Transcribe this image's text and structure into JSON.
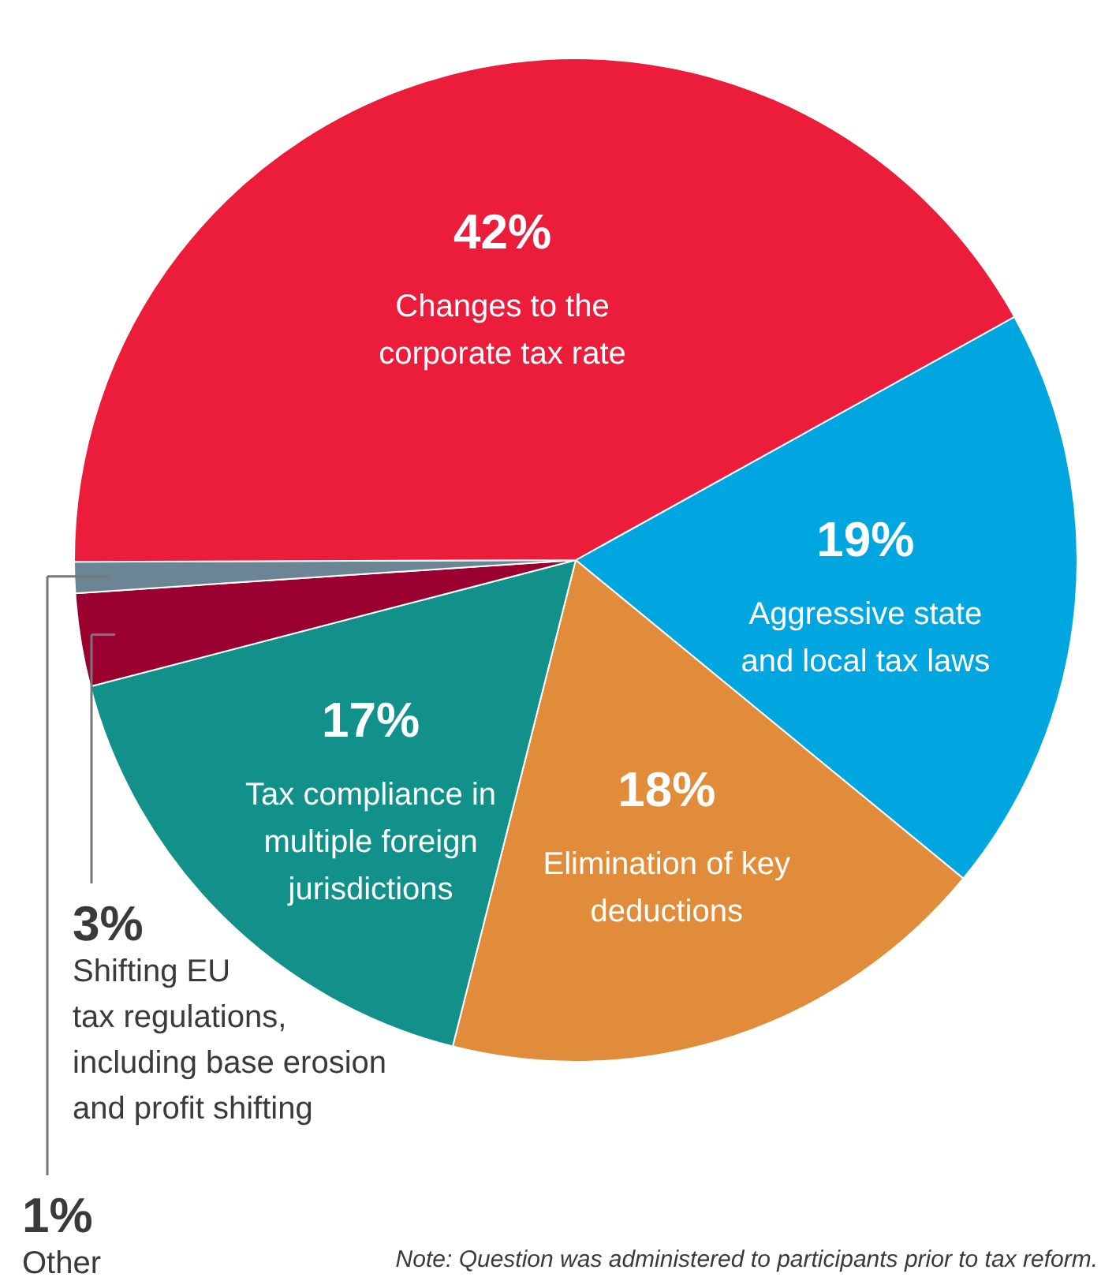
{
  "chart_data": {
    "type": "pie",
    "categories": [
      "Aggressive state\nand local tax laws",
      "Elimination of key\ndeductions",
      "Tax compliance in\nmultiple foreign\njurisdictions",
      "Shifting EU\ntax regulations,\nincluding base erosion\nand profit shifting",
      "Other",
      "Changes to the\ncorporate tax rate"
    ],
    "values": [
      19,
      18,
      17,
      3,
      1,
      42
    ],
    "colors": [
      "#00a6e0",
      "#e08c3a",
      "#12918a",
      "#9a0030",
      "#6c8594",
      "#ec1c3b"
    ],
    "value_labels": [
      "19%",
      "18%",
      "17%",
      "3%",
      "1%",
      "42%"
    ],
    "annotations": [
      "Note: Question was administered to participants prior to tax reform."
    ]
  }
}
